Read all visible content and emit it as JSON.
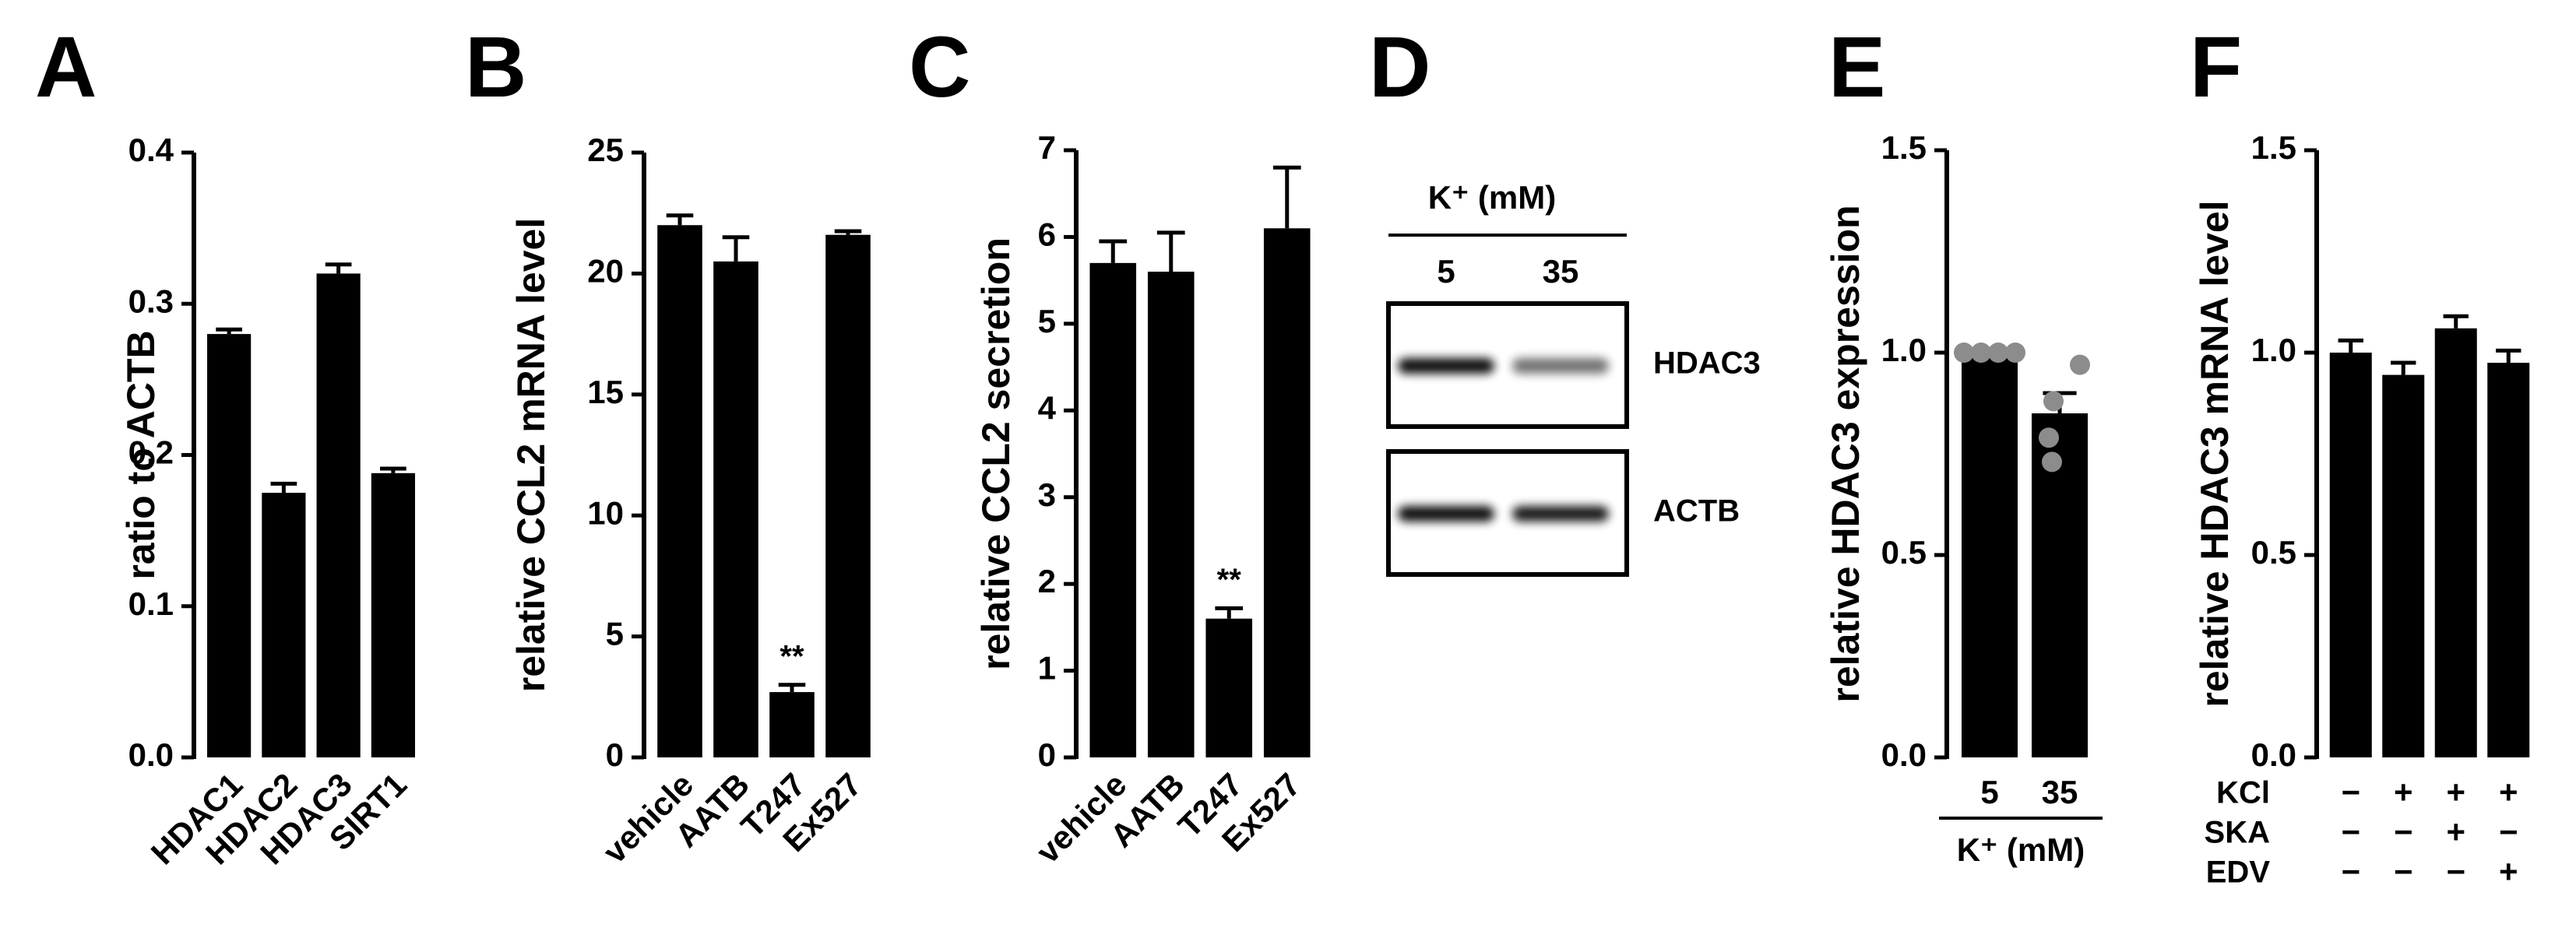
{
  "chart_data": [
    {
      "type": "bar",
      "label": "A",
      "ylabel": "ratio to ACTB",
      "categories": [
        "HDAC1",
        "HDAC2",
        "HDAC3",
        "SIRT1"
      ],
      "values": [
        0.28,
        0.175,
        0.32,
        0.188
      ],
      "errors": [
        0.003,
        0.006,
        0.006,
        0.003
      ],
      "color": "#000000",
      "ylim": [
        0,
        0.4
      ],
      "yticks": [
        {
          "value": 0,
          "label": "0.0"
        },
        0.1,
        0.2,
        0.3,
        0.4
      ]
    },
    {
      "type": "bar",
      "label": "B",
      "ylabel": "relative CCL2 mRNA level",
      "categories": [
        "vehicle",
        "AATB",
        "T247",
        "Ex527"
      ],
      "values": [
        22,
        20.5,
        2.7,
        21.6
      ],
      "errors": [
        0.4,
        1.0,
        0.3,
        0.15
      ],
      "color": "#000000",
      "significance": [
        null,
        null,
        "**",
        null
      ],
      "ylim": [
        0,
        25
      ],
      "yticks": [
        0,
        5,
        10,
        15,
        20,
        25
      ]
    },
    {
      "type": "bar",
      "label": "C",
      "ylabel": "relative CCL2 secretion",
      "categories": [
        "vehicle",
        "AATB",
        "T247",
        "Ex527"
      ],
      "values": [
        5.7,
        5.6,
        1.6,
        6.1
      ],
      "errors": [
        0.25,
        0.45,
        0.12,
        0.7
      ],
      "color": "#000000",
      "significance": [
        null,
        null,
        "**",
        null
      ],
      "ylim": [
        0,
        7
      ],
      "yticks": [
        0,
        1,
        2,
        3,
        4,
        5,
        6,
        7
      ]
    },
    {
      "type": "blot",
      "label": "D",
      "header": "K⁺ (mM)",
      "lanes": [
        "5",
        "35"
      ],
      "rows": [
        "HDAC3",
        "ACTB"
      ]
    },
    {
      "type": "bar",
      "label": "E",
      "ylabel": "relative HDAC3 expression",
      "categories": [
        "5",
        "35"
      ],
      "xlabel": "K⁺ (mM)",
      "values": [
        1.0,
        0.85
      ],
      "errors": [
        0,
        0.05
      ],
      "color": "#000000",
      "points": [
        [
          1.0,
          1.0,
          1.0,
          1.0
        ],
        [
          0.97,
          0.88,
          0.79,
          0.73
        ]
      ],
      "point_color": "#8c8c8c",
      "ylim": [
        0,
        1.5
      ],
      "yticks": [
        {
          "value": 0,
          "label": "0.0"
        },
        0.5,
        {
          "value": 1,
          "label": "1.0"
        },
        1.5
      ]
    },
    {
      "type": "bar",
      "label": "F",
      "ylabel": "relative HDAC3 mRNA level",
      "values": [
        1.0,
        0.945,
        1.06,
        0.975
      ],
      "errors": [
        0.03,
        0.03,
        0.03,
        0.03
      ],
      "color": "#000000",
      "conditions": [
        {
          "name": "KCl",
          "values": [
            "−",
            "+",
            "+",
            "+"
          ]
        },
        {
          "name": "SKA",
          "values": [
            "−",
            "−",
            "+",
            "−"
          ]
        },
        {
          "name": "EDV",
          "values": [
            "−",
            "−",
            "−",
            "+"
          ]
        }
      ],
      "ylim": [
        0,
        1.5
      ],
      "yticks": [
        {
          "value": 0,
          "label": "0.0"
        },
        0.5,
        {
          "value": 1,
          "label": "1.0"
        },
        1.5
      ]
    }
  ]
}
